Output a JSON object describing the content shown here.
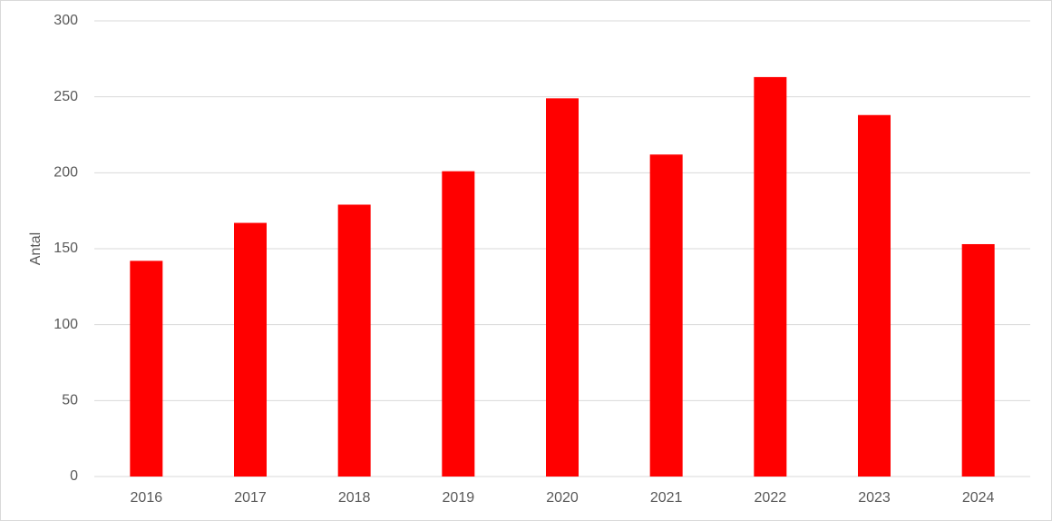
{
  "chart_data": {
    "type": "bar",
    "y_label": "Antal",
    "categories": [
      "2016",
      "2017",
      "2018",
      "2019",
      "2020",
      "2021",
      "2022",
      "2023",
      "2024"
    ],
    "values": [
      142,
      167,
      179,
      201,
      249,
      212,
      263,
      238,
      153
    ],
    "color": "#ff0000",
    "ylim": [
      0,
      300
    ],
    "yticks": [
      0,
      50,
      100,
      150,
      200,
      250,
      300
    ],
    "grid": true
  }
}
